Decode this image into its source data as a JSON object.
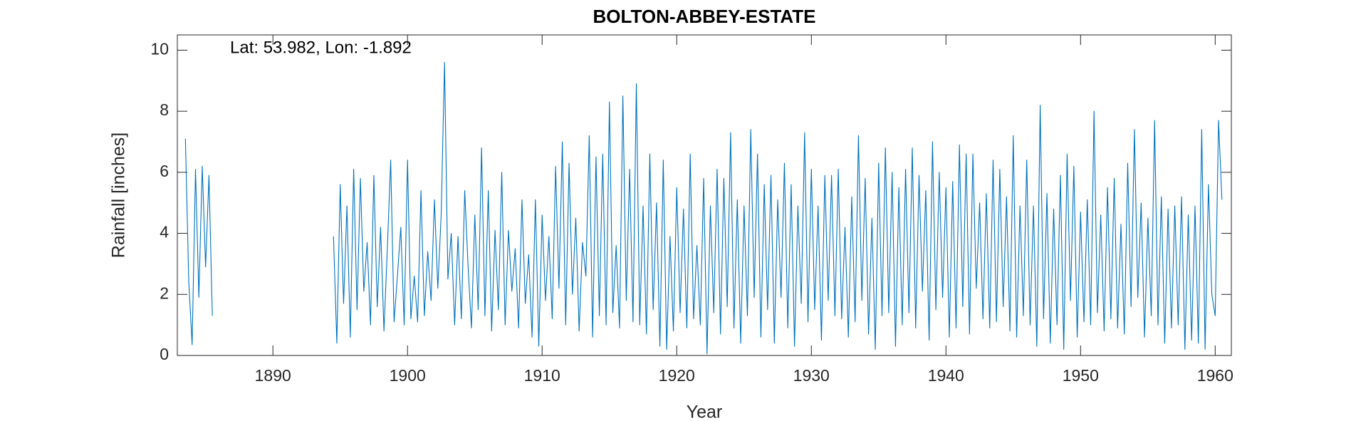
{
  "chart_data": {
    "type": "line",
    "title": "BOLTON-ABBEY-ESTATE",
    "annotation": "Lat: 53.982, Lon: -1.892",
    "xlabel": "Year",
    "ylabel": "Rainfall [inches]",
    "xlim": [
      1882.9,
      1961.2
    ],
    "ylim": [
      0,
      10.5
    ],
    "xticks": [
      1890,
      1900,
      1910,
      1920,
      1930,
      1940,
      1950,
      1960
    ],
    "yticks": [
      0,
      2,
      4,
      6,
      8,
      10
    ],
    "grid": false,
    "x": [
      1883.5,
      1883.75,
      1884,
      1884.25,
      1884.5,
      1884.75,
      1885,
      1885.25,
      1885.5,
      1890,
      1894.5,
      1894.75,
      1895,
      1895.25,
      1895.5,
      1895.75,
      1896,
      1896.25,
      1896.5,
      1896.75,
      1897,
      1897.25,
      1897.5,
      1897.75,
      1898,
      1898.25,
      1898.5,
      1898.75,
      1899,
      1899.25,
      1899.5,
      1899.75,
      1900,
      1900.25,
      1900.5,
      1900.75,
      1901,
      1901.25,
      1901.5,
      1901.75,
      1902,
      1902.25,
      1902.5,
      1902.75,
      1903,
      1903.25,
      1903.5,
      1903.75,
      1904,
      1904.25,
      1904.5,
      1904.75,
      1905,
      1905.25,
      1905.5,
      1905.75,
      1906,
      1906.25,
      1906.5,
      1906.75,
      1907,
      1907.25,
      1907.5,
      1907.75,
      1908,
      1908.25,
      1908.5,
      1908.75,
      1909,
      1909.25,
      1909.5,
      1909.75,
      1910,
      1910.25,
      1910.5,
      1910.75,
      1911,
      1911.25,
      1911.5,
      1911.75,
      1912,
      1912.25,
      1912.5,
      1912.75,
      1913,
      1913.25,
      1913.5,
      1913.75,
      1914,
      1914.25,
      1914.5,
      1914.75,
      1915,
      1915.25,
      1915.5,
      1915.75,
      1916,
      1916.25,
      1916.5,
      1916.75,
      1917,
      1917.25,
      1917.5,
      1917.75,
      1918,
      1918.25,
      1918.5,
      1918.75,
      1919,
      1919.25,
      1919.5,
      1919.75,
      1920,
      1920.25,
      1920.5,
      1920.75,
      1921,
      1921.25,
      1921.5,
      1921.75,
      1922,
      1922.25,
      1922.5,
      1922.75,
      1923,
      1923.25,
      1923.5,
      1923.75,
      1924,
      1924.25,
      1924.5,
      1924.75,
      1925,
      1925.25,
      1925.5,
      1925.75,
      1926,
      1926.25,
      1926.5,
      1926.75,
      1927,
      1927.25,
      1927.5,
      1927.75,
      1928,
      1928.25,
      1928.5,
      1928.75,
      1929,
      1929.25,
      1929.5,
      1929.75,
      1930,
      1930.25,
      1930.5,
      1930.75,
      1931,
      1931.25,
      1931.5,
      1931.75,
      1932,
      1932.25,
      1932.5,
      1932.75,
      1933,
      1933.25,
      1933.5,
      1933.75,
      1934,
      1934.25,
      1934.5,
      1934.75,
      1935,
      1935.25,
      1935.5,
      1935.75,
      1936,
      1936.25,
      1936.5,
      1936.75,
      1937,
      1937.25,
      1937.5,
      1937.75,
      1938,
      1938.25,
      1938.5,
      1938.75,
      1939,
      1939.25,
      1939.5,
      1939.75,
      1940,
      1940.25,
      1940.5,
      1940.75,
      1941,
      1941.25,
      1941.5,
      1941.75,
      1942,
      1942.25,
      1942.5,
      1942.75,
      1943,
      1943.25,
      1943.5,
      1943.75,
      1944,
      1944.25,
      1944.5,
      1944.75,
      1945,
      1945.25,
      1945.5,
      1945.75,
      1946,
      1946.25,
      1946.5,
      1946.75,
      1947,
      1947.25,
      1947.5,
      1947.75,
      1948,
      1948.25,
      1948.5,
      1948.75,
      1949,
      1949.25,
      1949.5,
      1949.75,
      1950,
      1950.25,
      1950.5,
      1950.75,
      1951,
      1951.25,
      1951.5,
      1951.75,
      1952,
      1952.25,
      1952.5,
      1952.75,
      1953,
      1953.25,
      1953.5,
      1953.75,
      1954,
      1954.25,
      1954.5,
      1954.75,
      1955,
      1955.25,
      1955.5,
      1955.75,
      1956,
      1956.25,
      1956.5,
      1956.75,
      1957,
      1957.25,
      1957.5,
      1957.75,
      1958,
      1958.25,
      1958.5,
      1958.75,
      1959,
      1959.25,
      1959.5,
      1959.75,
      1960,
      1960.25,
      1960.5
    ],
    "series": [
      {
        "color": "#0072bd",
        "values": [
          7.1,
          2.4,
          0.35,
          6.1,
          1.9,
          6.2,
          2.9,
          5.9,
          1.3,
          null,
          3.9,
          0.4,
          5.6,
          1.7,
          4.9,
          0.6,
          6.1,
          1.5,
          5.8,
          2.1,
          3.7,
          1.0,
          5.9,
          1.6,
          4.2,
          0.8,
          3.5,
          6.4,
          1.1,
          2.6,
          4.2,
          1.0,
          6.4,
          1.2,
          2.6,
          1.1,
          5.4,
          1.3,
          3.4,
          1.8,
          5.1,
          2.2,
          4.6,
          9.6,
          2.5,
          4.0,
          1.0,
          3.9,
          1.2,
          5.4,
          2.9,
          0.9,
          4.6,
          1.5,
          6.8,
          1.3,
          5.4,
          0.8,
          4.1,
          1.5,
          6.0,
          1.0,
          4.1,
          2.1,
          3.5,
          0.9,
          5.1,
          1.7,
          3.3,
          0.6,
          5.1,
          0.3,
          4.6,
          1.8,
          3.9,
          1.2,
          6.2,
          2.2,
          7.0,
          1.0,
          6.3,
          2.0,
          4.5,
          0.8,
          3.7,
          2.6,
          7.2,
          0.6,
          6.5,
          1.3,
          6.6,
          1.0,
          8.3,
          1.4,
          3.6,
          0.9,
          8.5,
          1.8,
          6.1,
          1.1,
          8.9,
          1.0,
          4.9,
          0.7,
          6.6,
          1.5,
          5.0,
          0.3,
          6.4,
          0.2,
          3.9,
          0.8,
          5.5,
          1.4,
          4.8,
          0.9,
          6.6,
          1.2,
          3.6,
          1.0,
          5.8,
          0.05,
          4.9,
          1.4,
          6.1,
          0.7,
          5.8,
          1.6,
          7.3,
          0.9,
          5.1,
          0.4,
          4.9,
          1.3,
          7.4,
          1.9,
          6.6,
          0.6,
          5.6,
          1.5,
          5.9,
          0.4,
          5.1,
          1.9,
          6.3,
          0.9,
          5.6,
          0.3,
          4.9,
          1.7,
          7.3,
          1.1,
          6.1,
          1.5,
          4.9,
          0.5,
          5.9,
          1.8,
          5.9,
          1.3,
          6.1,
          1.2,
          4.2,
          0.6,
          5.2,
          1.1,
          7.2,
          1.8,
          5.8,
          0.7,
          4.5,
          0.2,
          6.3,
          1.3,
          6.8,
          1.4,
          6.0,
          0.3,
          5.5,
          1.0,
          6.1,
          1.4,
          6.8,
          0.9,
          5.9,
          2.1,
          5.4,
          0.5,
          7.0,
          1.5,
          6.0,
          1.9,
          5.5,
          0.6,
          5.7,
          0.9,
          6.9,
          1.6,
          6.6,
          0.7,
          6.6,
          2.2,
          5.0,
          1.2,
          5.3,
          0.9,
          6.4,
          1.1,
          6.1,
          1.6,
          5.2,
          0.8,
          7.2,
          0.6,
          4.9,
          1.3,
          6.4,
          1.0,
          4.9,
          0.3,
          8.2,
          1.2,
          5.3,
          0.4,
          4.8,
          1.0,
          5.9,
          0.2,
          6.6,
          1.8,
          6.2,
          0.6,
          4.7,
          1.1,
          5.1,
          1.0,
          8.0,
          1.4,
          4.6,
          0.8,
          5.5,
          1.2,
          5.8,
          0.9,
          4.3,
          0.7,
          6.3,
          1.6,
          7.4,
          1.9,
          5.0,
          0.6,
          4.5,
          1.3,
          7.7,
          1.0,
          5.2,
          0.4,
          4.8,
          0.9,
          4.9,
          1.0,
          5.2,
          0.2,
          4.6,
          0.5,
          4.9,
          0.4,
          7.4,
          0.2,
          5.6,
          2.0,
          1.3,
          7.7,
          5.1
        ]
      }
    ]
  }
}
